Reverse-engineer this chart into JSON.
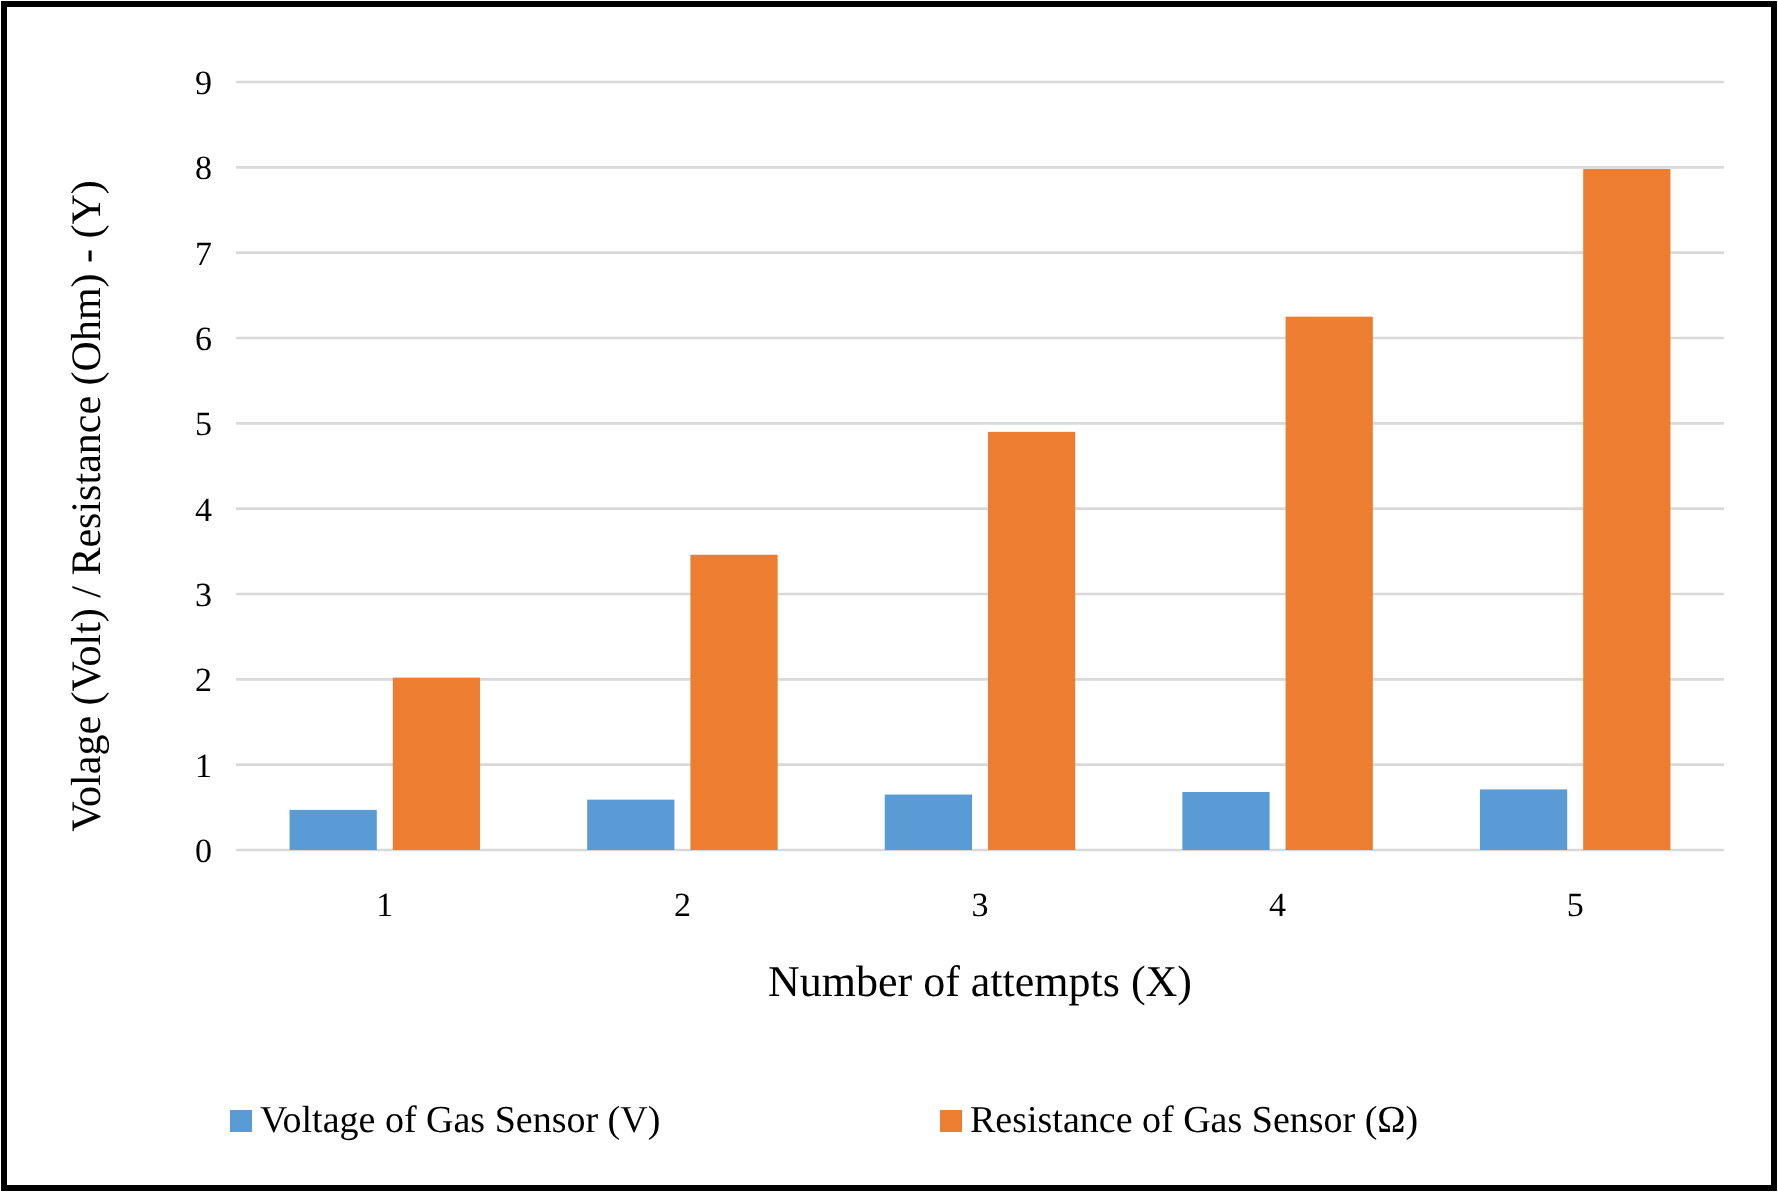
{
  "chart_data": {
    "type": "bar",
    "xlabel": "Number of attempts (X)",
    "ylabel": "Volage (Volt) / Resistance (Ohm) - (Y)",
    "categories": [
      "1",
      "2",
      "3",
      "4",
      "5"
    ],
    "series": [
      {
        "name": "Voltage of Gas Sensor (V)",
        "color": "#5b9bd5",
        "values": [
          0.47,
          0.59,
          0.65,
          0.68,
          0.71
        ]
      },
      {
        "name": "Resistance of Gas Sensor (Ω)",
        "color": "#ed7d31",
        "values": [
          2.02,
          3.46,
          4.9,
          6.25,
          7.98
        ]
      }
    ],
    "ylim": [
      0,
      9
    ],
    "yticks": [
      0,
      1,
      2,
      3,
      4,
      5,
      6,
      7,
      8,
      9
    ],
    "grid": "y",
    "legend": "bottom"
  }
}
